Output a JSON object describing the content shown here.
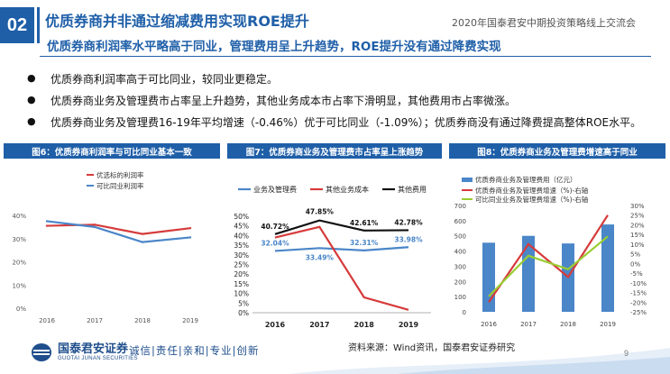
{
  "header": {
    "section_number": "02",
    "title": "优质券商并非通过缩减费用实现ROE提升",
    "conference": "2020年国泰君安中期投资策略线上交流会",
    "subtitle": "优质券商利润率水平略高于同业，管理费用呈上升趋势，ROE提升没有通过降费实现"
  },
  "bullets": [
    "优质券商利润率高于可比同业，较同业更稳定。",
    "优质券商业务及管理费市占率呈上升趋势，其他业务成本市占率下滑明显，其他费用市占率微涨。",
    "优质券商业务及管理费16-19年平均增速（-0.46%）优于可比同业（-1.09%）；优质券商没有通过降费提高整体ROE水平。"
  ],
  "colors": {
    "brand": "#1f5fa8",
    "red": "#d63b3b",
    "blue": "#4a86c8",
    "black": "#111111",
    "green": "#9acd32"
  },
  "charts": [
    {
      "heading": "图6：优质券商利润率与可比同业基本一致",
      "chart_data": {
        "type": "line",
        "x": [
          "2016",
          "2017",
          "2018",
          "2019"
        ],
        "ylim": [
          0,
          40
        ],
        "yticks": [
          "0%",
          "10%",
          "20%",
          "30%",
          "40%"
        ],
        "legend": "top",
        "series": [
          {
            "name": "优选标的利润率",
            "color": "#d63b3b",
            "values": [
              35.5,
              36,
              32,
              34.5
            ]
          },
          {
            "name": "可比同业利润率",
            "color": "#4a86c8",
            "values": [
              37.5,
              35,
              28.5,
              30.5
            ]
          }
        ]
      }
    },
    {
      "heading": "图7：优质券商业务及管理费市占率呈上涨趋势",
      "chart_data": {
        "type": "line",
        "x": [
          "2016",
          "2017",
          "2018",
          "2019"
        ],
        "ylim": [
          0,
          50
        ],
        "yticks": [
          "0%",
          "5%",
          "10%",
          "15%",
          "20%",
          "25%",
          "30%",
          "35%",
          "40%",
          "45%",
          "50%"
        ],
        "legend": "top",
        "series": [
          {
            "name": "业务及管理费",
            "color": "#4a86c8",
            "values": [
              32.04,
              33.49,
              32.31,
              33.98
            ]
          },
          {
            "name": "其他业务成本",
            "color": "#d63b3b",
            "values": [
              39,
              44.5,
              8,
              1.5
            ]
          },
          {
            "name": "其他费用",
            "color": "#111111",
            "values": [
              40.72,
              47.85,
              42.61,
              42.78
            ]
          }
        ],
        "labels": [
          {
            "text": "40.72%",
            "series": 2,
            "i": 0,
            "color": "#111111"
          },
          {
            "text": "47.85%",
            "series": 2,
            "i": 1,
            "color": "#111111"
          },
          {
            "text": "42.61%",
            "series": 2,
            "i": 2,
            "color": "#111111"
          },
          {
            "text": "42.78%",
            "series": 2,
            "i": 3,
            "color": "#111111"
          },
          {
            "text": "32.04%",
            "series": 0,
            "i": 0,
            "color": "#4a86c8"
          },
          {
            "text": "33.49%",
            "series": 0,
            "i": 1,
            "color": "#4a86c8"
          },
          {
            "text": "32.31%",
            "series": 0,
            "i": 2,
            "color": "#4a86c8"
          },
          {
            "text": "33.98%",
            "series": 0,
            "i": 3,
            "color": "#4a86c8"
          }
        ]
      }
    },
    {
      "heading": "图8：优质券商业务及管理费增速高于同业",
      "chart_data": {
        "type": "bar",
        "categories": [
          "2016",
          "2017",
          "2018",
          "2019"
        ],
        "ylim": [
          0,
          700
        ],
        "yticks": [
          "0",
          "100",
          "200",
          "300",
          "400",
          "500",
          "600",
          "700"
        ],
        "y2lim": [
          -25,
          30
        ],
        "y2ticks": [
          "-25%",
          "-20%",
          "-15%",
          "-10%",
          "-5%",
          "0%",
          "5%",
          "10%",
          "15%",
          "20%",
          "25%",
          "30%"
        ],
        "legend": "top",
        "bars": {
          "name": "优质券商业务及管理费用（亿元）",
          "color": "#4a86c8",
          "values": [
            455,
            500,
            450,
            575
          ]
        },
        "lines": [
          {
            "name": "优质券商业务及管理费增速（%)-右轴",
            "color": "#d63b3b",
            "values": [
              -20,
              10,
              -7,
              25
            ]
          },
          {
            "name": "可比同业业务及管理费增速（%)-右轴",
            "color": "#9acd32",
            "values": [
              -17,
              4,
              -3,
              14
            ]
          }
        ]
      }
    }
  ],
  "footer": {
    "logo_cn": "国泰君安证券",
    "logo_en": "GUOTAI JUNAN SECURITIES",
    "slogan": "诚信|责任|亲和|专业|创新",
    "source": "资料来源：Wind资讯，国泰君安证券研究",
    "page": "9"
  }
}
